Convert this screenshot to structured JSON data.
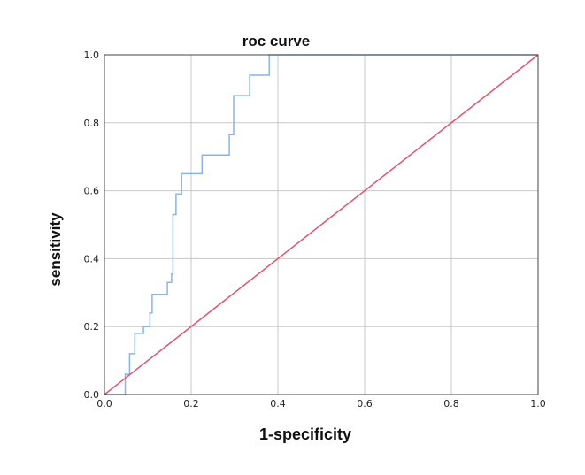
{
  "chart_data": {
    "type": "line",
    "title": "roc curve",
    "xlabel": "1-specificity",
    "ylabel": "sensitivity",
    "xlim": [
      0.0,
      1.0
    ],
    "ylim": [
      0.0,
      1.0
    ],
    "grid": true,
    "x_ticks": [
      "0.0",
      "0.2",
      "0.4",
      "0.6",
      "0.8",
      "1.0"
    ],
    "y_ticks": [
      "0.0",
      "0.2",
      "0.4",
      "0.6",
      "0.8",
      "1.0"
    ],
    "series": [
      {
        "color": "#8ab4e8",
        "step": true,
        "x": [
          0.0,
          0.048,
          0.048,
          0.058,
          0.058,
          0.07,
          0.07,
          0.09,
          0.09,
          0.105,
          0.105,
          0.11,
          0.11,
          0.145,
          0.145,
          0.155,
          0.155,
          0.158,
          0.158,
          0.165,
          0.165,
          0.178,
          0.178,
          0.225,
          0.225,
          0.288,
          0.288,
          0.298,
          0.298,
          0.335,
          0.335,
          0.38,
          0.38,
          1.0
        ],
        "y": [
          0.0,
          0.0,
          0.06,
          0.06,
          0.12,
          0.12,
          0.18,
          0.18,
          0.2,
          0.2,
          0.24,
          0.24,
          0.295,
          0.295,
          0.33,
          0.33,
          0.355,
          0.355,
          0.53,
          0.53,
          0.59,
          0.59,
          0.65,
          0.65,
          0.705,
          0.705,
          0.765,
          0.765,
          0.88,
          0.88,
          0.94,
          0.94,
          1.0,
          1.0
        ]
      },
      {
        "color": "#e0536f",
        "x": [
          0.0,
          1.0
        ],
        "y": [
          0.0,
          1.0
        ]
      }
    ]
  }
}
